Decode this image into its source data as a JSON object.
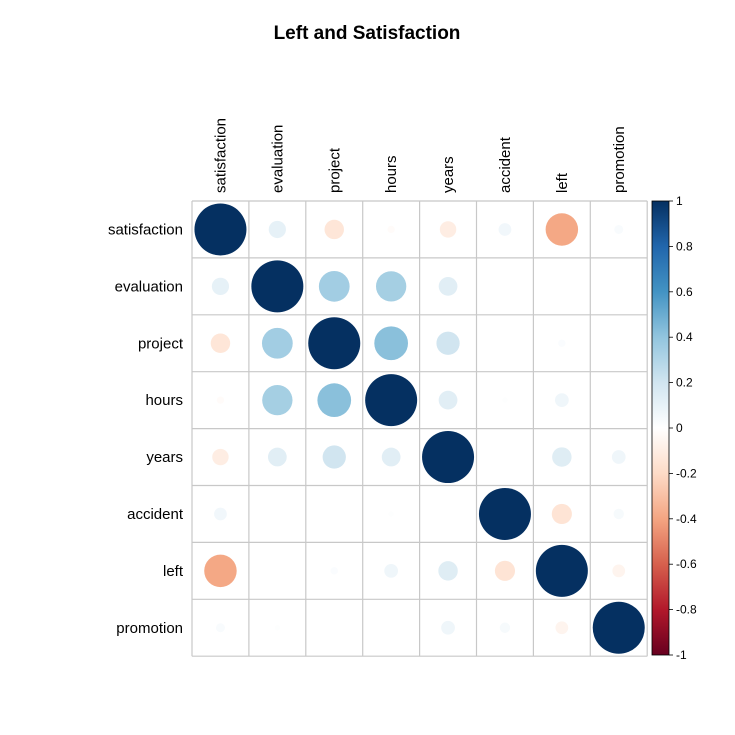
{
  "chart_data": {
    "type": "heatmap",
    "style": "corrplot-circle",
    "title": "Left and Satisfaction",
    "variables": [
      "satisfaction",
      "evaluation",
      "project",
      "hours",
      "years",
      "accident",
      "left",
      "promotion"
    ],
    "matrix": [
      [
        1.0,
        0.11,
        -0.14,
        -0.02,
        -0.1,
        0.06,
        -0.39,
        0.03
      ],
      [
        0.11,
        1.0,
        0.35,
        0.34,
        0.13,
        0.0,
        0.0,
        0.0
      ],
      [
        -0.14,
        0.35,
        1.0,
        0.42,
        0.2,
        0.0,
        0.02,
        0.0
      ],
      [
        -0.02,
        0.34,
        0.42,
        1.0,
        0.13,
        0.01,
        0.07,
        0.0
      ],
      [
        -0.1,
        0.13,
        0.2,
        0.13,
        1.0,
        0.0,
        0.14,
        0.07
      ],
      [
        0.06,
        0.0,
        0.0,
        0.01,
        0.0,
        1.0,
        -0.15,
        0.04
      ],
      [
        -0.39,
        0.0,
        0.02,
        0.07,
        0.14,
        -0.15,
        1.0,
        -0.06
      ],
      [
        0.03,
        0.01,
        0.0,
        0.0,
        0.07,
        0.04,
        -0.06,
        1.0
      ]
    ],
    "color_scale": {
      "ticks": [
        "1",
        "0.8",
        "0.6",
        "0.4",
        "0.2",
        "0",
        "-0.2",
        "-0.4",
        "-0.6",
        "-0.8",
        "-1"
      ],
      "range": [
        -1,
        1
      ],
      "colors": [
        "#67001F",
        "#B2182B",
        "#D6604D",
        "#F4A582",
        "#FDDBC7",
        "#FFFFFF",
        "#D1E5F0",
        "#92C5DE",
        "#4393C3",
        "#2166AC",
        "#053061"
      ]
    }
  }
}
